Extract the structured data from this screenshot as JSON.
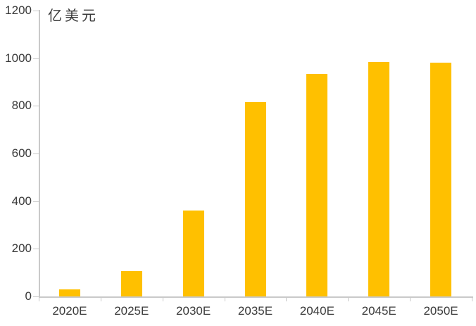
{
  "chart_data": {
    "type": "bar",
    "title": "",
    "ylabel": "亿美元",
    "xlabel": "",
    "categories": [
      "2020E",
      "2025E",
      "2030E",
      "2035E",
      "2040E",
      "2045E",
      "2050E"
    ],
    "values": [
      30,
      105,
      360,
      815,
      935,
      985,
      980
    ],
    "ylim": [
      0,
      1200
    ],
    "yticks": [
      0,
      200,
      400,
      600,
      800,
      1000,
      1200
    ],
    "grid": false,
    "legend_position": "none",
    "bar_color": "#FFC000",
    "axis_color": "#C9C9C9",
    "label_color": "#3A3A3A"
  }
}
